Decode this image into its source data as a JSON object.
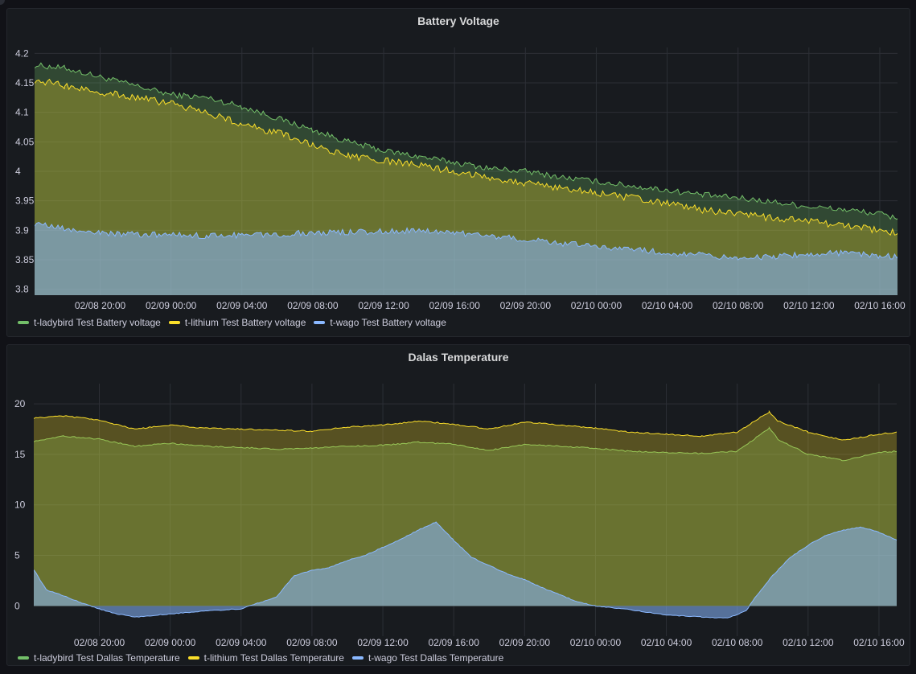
{
  "colors": {
    "ladybird": "#73bf69",
    "lithium": "#fade2a",
    "wago": "#8ab8ff",
    "grid": "#2c2f36",
    "panel_bg": "#181b1f",
    "page_bg": "#111217"
  },
  "chart_data": [
    {
      "type": "area",
      "title": "Battery Voltage",
      "ylim": [
        3.79,
        4.21
      ],
      "yticks": [
        "3.8",
        "3.85",
        "3.9",
        "3.95",
        "4",
        "4.05",
        "4.1",
        "4.15",
        "4.2"
      ],
      "yticks_values": [
        3.8,
        3.85,
        3.9,
        3.95,
        4.0,
        4.05,
        4.1,
        4.15,
        4.2
      ],
      "xticks": [
        "02/08 20:00",
        "02/09 00:00",
        "02/09 04:00",
        "02/09 08:00",
        "02/09 12:00",
        "02/09 16:00",
        "02/09 20:00",
        "02/10 00:00",
        "02/10 04:00",
        "02/10 08:00",
        "02/10 12:00",
        "02/10 16:00"
      ],
      "xticks_hours": [
        20,
        24,
        28,
        32,
        36,
        40,
        44,
        48,
        52,
        56,
        60,
        64
      ],
      "x_hours_range": [
        16.3,
        65.0
      ],
      "grid": true,
      "legend_position": "bottom-left",
      "series": [
        {
          "name": "t-ladybird Test Battery voltage",
          "color_key": "ladybird",
          "x_hours": [
            16.3,
            18,
            20,
            22,
            24,
            26,
            28,
            30,
            32,
            34,
            36,
            38,
            40,
            42,
            44,
            46,
            48,
            50,
            52,
            54,
            56,
            58,
            60,
            62,
            64,
            65
          ],
          "values": [
            4.18,
            4.175,
            4.16,
            4.145,
            4.13,
            4.125,
            4.11,
            4.09,
            4.07,
            4.05,
            4.035,
            4.025,
            4.015,
            4.005,
            4.0,
            3.99,
            3.983,
            3.975,
            3.968,
            3.96,
            3.955,
            3.948,
            3.94,
            3.935,
            3.928,
            3.92
          ]
        },
        {
          "name": "t-lithium Test Battery voltage",
          "color_key": "lithium",
          "x_hours": [
            16.3,
            18,
            20,
            22,
            24,
            26,
            28,
            30,
            32,
            34,
            36,
            38,
            40,
            42,
            44,
            46,
            48,
            50,
            52,
            54,
            56,
            58,
            60,
            62,
            64,
            65
          ],
          "values": [
            4.155,
            4.145,
            4.135,
            4.125,
            4.115,
            4.1,
            4.08,
            4.065,
            4.045,
            4.025,
            4.018,
            4.01,
            4.0,
            3.99,
            3.98,
            3.972,
            3.963,
            3.955,
            3.945,
            3.935,
            3.928,
            3.92,
            3.915,
            3.908,
            3.9,
            3.895
          ]
        },
        {
          "name": "t-wago Test Battery voltage",
          "color_key": "wago",
          "x_hours": [
            16.3,
            18,
            20,
            22,
            24,
            26,
            28,
            30,
            32,
            34,
            36,
            38,
            40,
            42,
            44,
            46,
            48,
            50,
            52,
            54,
            56,
            58,
            60,
            62,
            64,
            65
          ],
          "values": [
            3.912,
            3.902,
            3.895,
            3.893,
            3.892,
            3.891,
            3.892,
            3.893,
            3.896,
            3.897,
            3.898,
            3.9,
            3.896,
            3.89,
            3.885,
            3.878,
            3.873,
            3.868,
            3.862,
            3.858,
            3.853,
            3.855,
            3.86,
            3.862,
            3.857,
            3.855
          ]
        }
      ]
    },
    {
      "type": "area",
      "title": "Dalas Temperature",
      "ylim": [
        -3,
        22
      ],
      "yticks": [
        "0",
        "5",
        "10",
        "15",
        "20"
      ],
      "yticks_values": [
        0,
        5,
        10,
        15,
        20
      ],
      "xticks": [
        "02/08 20:00",
        "02/09 00:00",
        "02/09 04:00",
        "02/09 08:00",
        "02/09 12:00",
        "02/09 16:00",
        "02/09 20:00",
        "02/10 00:00",
        "02/10 04:00",
        "02/10 08:00",
        "02/10 12:00",
        "02/10 16:00"
      ],
      "xticks_hours": [
        20,
        24,
        28,
        32,
        36,
        40,
        44,
        48,
        52,
        56,
        60,
        64
      ],
      "x_hours_range": [
        16.3,
        65.0
      ],
      "grid": true,
      "legend_position": "bottom-left",
      "series": [
        {
          "name": "t-ladybird Test Dallas Temperature",
          "color_key": "ladybird",
          "x_hours": [
            16.3,
            18,
            20,
            22,
            24,
            26,
            28,
            30,
            32,
            34,
            36,
            38,
            40,
            42,
            44,
            46,
            48,
            50,
            52,
            54,
            56,
            57.8,
            58.3,
            60,
            62,
            64,
            65
          ],
          "values": [
            16.3,
            16.8,
            16.5,
            15.8,
            16.1,
            15.8,
            15.7,
            15.5,
            15.6,
            15.8,
            15.9,
            16.2,
            16.0,
            15.4,
            16.0,
            15.8,
            15.6,
            15.3,
            15.2,
            15.1,
            15.3,
            17.6,
            16.5,
            15.0,
            14.4,
            15.2,
            15.3
          ]
        },
        {
          "name": "t-lithium Test Dallas Temperature",
          "color_key": "lithium",
          "x_hours": [
            16.3,
            18,
            20,
            22,
            24,
            26,
            28,
            30,
            32,
            34,
            36,
            38,
            40,
            42,
            44,
            46,
            48,
            50,
            52,
            54,
            56,
            57.8,
            58.3,
            60,
            62,
            64,
            65
          ],
          "values": [
            18.6,
            18.8,
            18.4,
            17.5,
            17.9,
            17.6,
            17.5,
            17.4,
            17.3,
            17.7,
            17.9,
            18.3,
            18.0,
            17.5,
            18.2,
            17.9,
            17.6,
            17.2,
            17.0,
            16.8,
            17.2,
            19.2,
            18.3,
            17.2,
            16.4,
            17.0,
            17.2
          ]
        },
        {
          "name": "t-wago Test Dallas Temperature",
          "color_key": "wago",
          "x_hours": [
            16.3,
            17,
            18,
            19,
            20,
            21,
            22,
            24,
            26,
            28,
            29,
            30,
            31,
            32,
            33,
            34,
            35,
            36,
            37,
            38,
            39,
            40,
            41,
            42,
            43,
            44,
            45,
            46,
            47,
            48,
            50,
            52,
            54,
            55.5,
            56.5,
            57,
            58,
            59,
            60,
            61,
            62,
            63,
            64,
            65
          ],
          "values": [
            3.6,
            1.6,
            1.0,
            0.3,
            -0.3,
            -0.8,
            -1.1,
            -0.8,
            -0.5,
            -0.3,
            0.3,
            0.9,
            3.0,
            3.5,
            3.8,
            4.5,
            5.0,
            5.8,
            6.6,
            7.5,
            8.3,
            6.5,
            4.8,
            4.0,
            3.2,
            2.6,
            1.8,
            1.1,
            0.4,
            0.0,
            -0.4,
            -0.9,
            -1.1,
            -1.2,
            -0.5,
            0.8,
            3.0,
            4.8,
            6.0,
            7.0,
            7.5,
            7.8,
            7.3,
            6.5
          ]
        }
      ]
    }
  ]
}
